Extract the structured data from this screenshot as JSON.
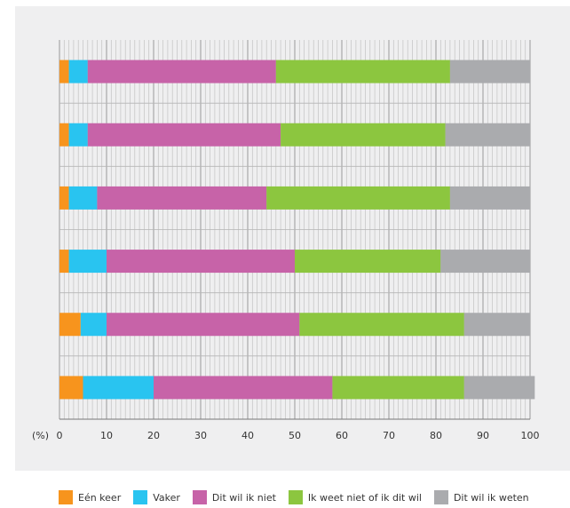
{
  "chart_data": {
    "type": "bar",
    "orientation": "horizontal",
    "stacked": true,
    "unit_label": "(%)",
    "xlim": [
      0,
      100
    ],
    "x_ticks": [
      0,
      10,
      20,
      30,
      40,
      50,
      60,
      70,
      80,
      90,
      100
    ],
    "categories": [
      "",
      "",
      "",
      "",
      "",
      ""
    ],
    "series": [
      {
        "name": "Eén keer",
        "color": "#f7941d",
        "values": [
          2,
          2,
          2,
          2,
          4.5,
          5
        ]
      },
      {
        "name": "Vaker",
        "color": "#29c4f0",
        "values": [
          4,
          4,
          6,
          8,
          5.5,
          15
        ]
      },
      {
        "name": "Dit wil ik niet",
        "color": "#c763a8",
        "values": [
          40,
          41,
          36,
          40,
          41,
          38
        ]
      },
      {
        "name": "Ik weet niet of ik dit wil",
        "color": "#8cc63f",
        "values": [
          37,
          35,
          39,
          31,
          35,
          28
        ]
      },
      {
        "name": "Dit wil ik weten",
        "color": "#aaabae",
        "values": [
          17,
          18,
          17,
          19,
          14,
          15
        ]
      }
    ],
    "grid": true,
    "legend_position": "bottom"
  }
}
